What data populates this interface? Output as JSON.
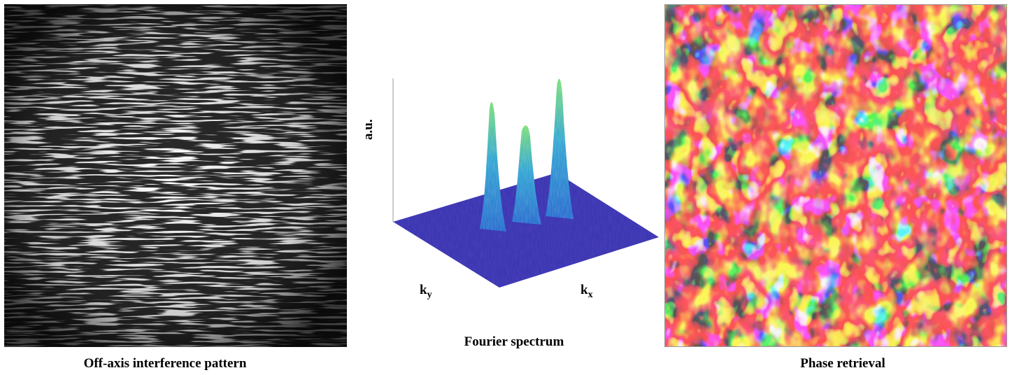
{
  "panels": [
    {
      "id": "interference",
      "caption": "Off-axis interference pattern"
    },
    {
      "id": "spectrum",
      "caption": "Fourier spectrum",
      "axes": {
        "z_label": "a.u.",
        "kx_label": "k",
        "kx_sub": "x",
        "ky_label": "k",
        "ky_sub": "y"
      },
      "colors": {
        "plane": "#3d36b3",
        "peak_low": "#2a7fd6",
        "peak_high": "#7fe07a"
      }
    },
    {
      "id": "phase",
      "caption": "Phase retrieval",
      "colormap": [
        "#1a1aa8",
        "#1fb7ef",
        "#f3ee3a",
        "#f1592a",
        "#b31516"
      ]
    }
  ]
}
